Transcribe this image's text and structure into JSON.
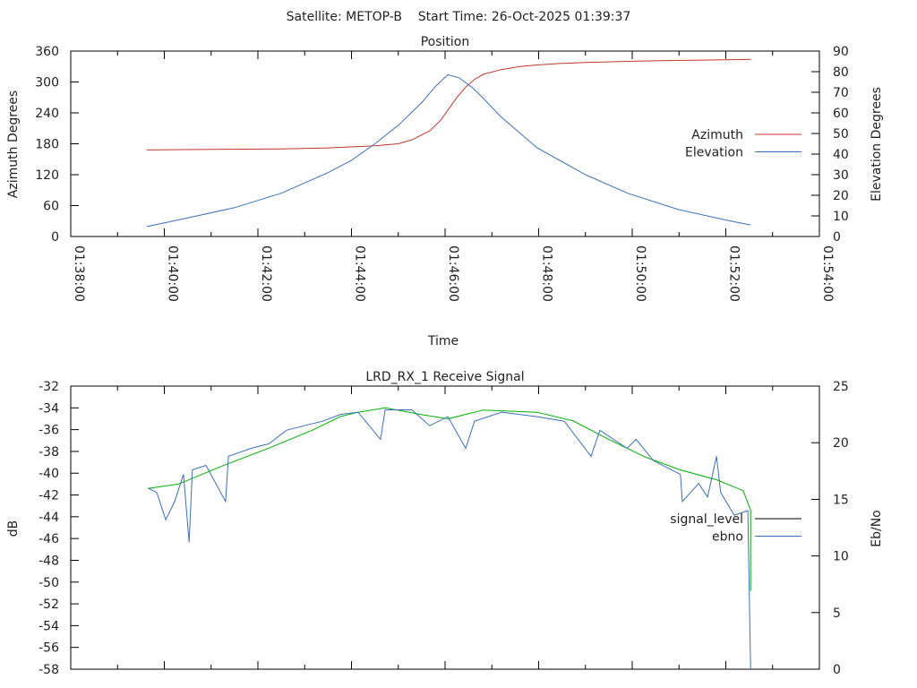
{
  "header": {
    "title": "Satellite: METOP-B    Start Time: 26-Oct-2025 01:39:37"
  },
  "chart_data": [
    {
      "type": "line",
      "title": "Position",
      "xlabel": "Time",
      "ylabel": "Azimuth Degrees",
      "y2label": "Elevation Degrees",
      "x_unit": "minutes after 01:38:00",
      "xlim": [
        0,
        16
      ],
      "ylim": [
        0,
        360
      ],
      "y2lim": [
        0,
        90
      ],
      "x_ticks": [
        "01:38:00",
        "01:40:00",
        "01:42:00",
        "01:44:00",
        "01:46:00",
        "01:48:00",
        "01:50:00",
        "01:52:00",
        "01:54:00"
      ],
      "y_ticks": [
        "0",
        "60",
        "120",
        "180",
        "240",
        "300",
        "360"
      ],
      "y2_ticks": [
        "0",
        "10",
        "20",
        "30",
        "40",
        "50",
        "60",
        "70",
        "80",
        "90"
      ],
      "legend_position": "right-middle",
      "series": [
        {
          "name": "Azimuth",
          "axis": "y",
          "color": "#c0392b",
          "x": [
            1.62,
            3.0,
            4.5,
            5.5,
            6.5,
            7.0,
            7.3,
            7.67,
            7.9,
            8.06,
            8.25,
            8.44,
            8.63,
            8.82,
            9.2,
            9.6,
            9.97,
            10.5,
            11.0,
            11.9,
            13.0,
            14.0,
            14.53
          ],
          "y": [
            168,
            169,
            170,
            172,
            176,
            180,
            188,
            205,
            225,
            245,
            270,
            290,
            305,
            315,
            324,
            330,
            333,
            336,
            338,
            340,
            342,
            343,
            344
          ]
        },
        {
          "name": "Elevation",
          "axis": "y2",
          "color": "#3a6fbf",
          "x": [
            1.62,
            2.5,
            3.5,
            4.5,
            5.5,
            6.0,
            6.5,
            7.0,
            7.5,
            7.8,
            8.06,
            8.3,
            8.6,
            8.82,
            9.2,
            9.97,
            11.0,
            11.9,
            13.0,
            14.0,
            14.53
          ],
          "y": [
            4.8,
            9,
            14,
            21,
            31,
            37,
            45,
            54,
            65,
            73,
            78.5,
            77,
            72,
            67,
            58,
            43,
            30,
            21,
            13,
            8,
            5.6
          ]
        }
      ]
    },
    {
      "type": "line",
      "title": "LRD_RX_1 Receive Signal",
      "ylabel": "dB",
      "y2label": "Eb/No",
      "x_unit": "minutes after 01:38:00",
      "xlim": [
        0,
        16
      ],
      "ylim": [
        -58,
        -32
      ],
      "y2lim": [
        0,
        25
      ],
      "y_ticks": [
        "-32",
        "-34",
        "-36",
        "-38",
        "-40",
        "-42",
        "-44",
        "-46",
        "-48",
        "-50",
        "-52",
        "-54",
        "-56",
        "-58"
      ],
      "y2_ticks": [
        "0",
        "5",
        "10",
        "15",
        "20",
        "25"
      ],
      "legend_position": "right-middle",
      "series": [
        {
          "name": "signal_level",
          "axis": "y",
          "color": "#00b000",
          "key_color": "#000000",
          "x": [
            1.65,
            2.3,
            3.26,
            4.23,
            5.19,
            5.76,
            6.14,
            6.72,
            7.48,
            8.06,
            8.82,
            9.97,
            10.74,
            11.5,
            12.27,
            13.03,
            13.8,
            14.37,
            14.53,
            14.53
          ],
          "y": [
            -41.4,
            -41.0,
            -39.3,
            -37.7,
            -36.0,
            -34.8,
            -34.4,
            -34.0,
            -34.6,
            -35.0,
            -34.2,
            -34.4,
            -35.2,
            -36.9,
            -38.5,
            -39.7,
            -40.6,
            -41.6,
            -43.4,
            -50.8
          ]
        },
        {
          "name": "ebno",
          "axis": "y2",
          "color": "#3a6fbf",
          "x": [
            1.65,
            1.84,
            2.03,
            2.22,
            2.41,
            2.53,
            2.6,
            2.89,
            3.31,
            3.37,
            3.85,
            4.23,
            4.61,
            4.99,
            5.38,
            5.76,
            6.14,
            6.62,
            6.72,
            7.29,
            7.67,
            8.06,
            8.44,
            8.63,
            9.21,
            9.97,
            10.55,
            11.12,
            11.31,
            11.89,
            12.08,
            12.46,
            13.03,
            13.07,
            13.42,
            13.61,
            13.8,
            13.89,
            14.18,
            14.47,
            14.53
          ],
          "y": [
            16.0,
            15.6,
            13.2,
            14.8,
            17.2,
            11.2,
            17.6,
            18.0,
            14.8,
            18.8,
            19.5,
            19.9,
            21.1,
            21.5,
            21.9,
            22.5,
            22.7,
            20.3,
            22.9,
            22.9,
            21.5,
            22.3,
            19.5,
            21.9,
            22.7,
            22.3,
            21.9,
            18.8,
            21.1,
            19.5,
            20.3,
            18.4,
            17.2,
            14.8,
            16.4,
            15.2,
            18.8,
            15.6,
            13.6,
            14.0,
            0
          ]
        }
      ]
    }
  ]
}
